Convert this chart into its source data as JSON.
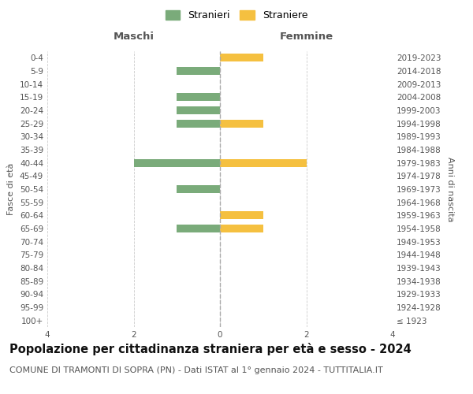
{
  "age_groups": [
    "100+",
    "95-99",
    "90-94",
    "85-89",
    "80-84",
    "75-79",
    "70-74",
    "65-69",
    "60-64",
    "55-59",
    "50-54",
    "45-49",
    "40-44",
    "35-39",
    "30-34",
    "25-29",
    "20-24",
    "15-19",
    "10-14",
    "5-9",
    "0-4"
  ],
  "birth_years": [
    "≤ 1923",
    "1924-1928",
    "1929-1933",
    "1934-1938",
    "1939-1943",
    "1944-1948",
    "1949-1953",
    "1954-1958",
    "1959-1963",
    "1964-1968",
    "1969-1973",
    "1974-1978",
    "1979-1983",
    "1984-1988",
    "1989-1993",
    "1994-1998",
    "1999-2003",
    "2004-2008",
    "2009-2013",
    "2014-2018",
    "2019-2023"
  ],
  "stranieri_maschi": [
    0,
    0,
    0,
    0,
    0,
    0,
    0,
    1,
    0,
    0,
    1,
    0,
    2,
    0,
    0,
    1,
    1,
    1,
    0,
    1,
    0
  ],
  "straniere_femmine": [
    0,
    0,
    0,
    0,
    0,
    0,
    0,
    1,
    1,
    0,
    0,
    0,
    2,
    0,
    0,
    1,
    0,
    0,
    0,
    0,
    1
  ],
  "color_maschi": "#7aab7a",
  "color_femmine": "#f5c040",
  "xlim": 4,
  "xlabel_left": "Maschi",
  "xlabel_right": "Femmine",
  "ylabel_left": "Fasce di età",
  "ylabel_right": "Anni di nascita",
  "title": "Popolazione per cittadinanza straniera per età e sesso - 2024",
  "subtitle": "COMUNE DI TRAMONTI DI SOPRA (PN) - Dati ISTAT al 1° gennaio 2024 - TUTTITALIA.IT",
  "legend_stranieri": "Stranieri",
  "legend_straniere": "Straniere",
  "background_color": "#ffffff",
  "grid_color": "#cccccc",
  "zero_line_color": "#aaaaaa",
  "tick_fontsize": 7.5,
  "title_fontsize": 10.5,
  "subtitle_fontsize": 8
}
